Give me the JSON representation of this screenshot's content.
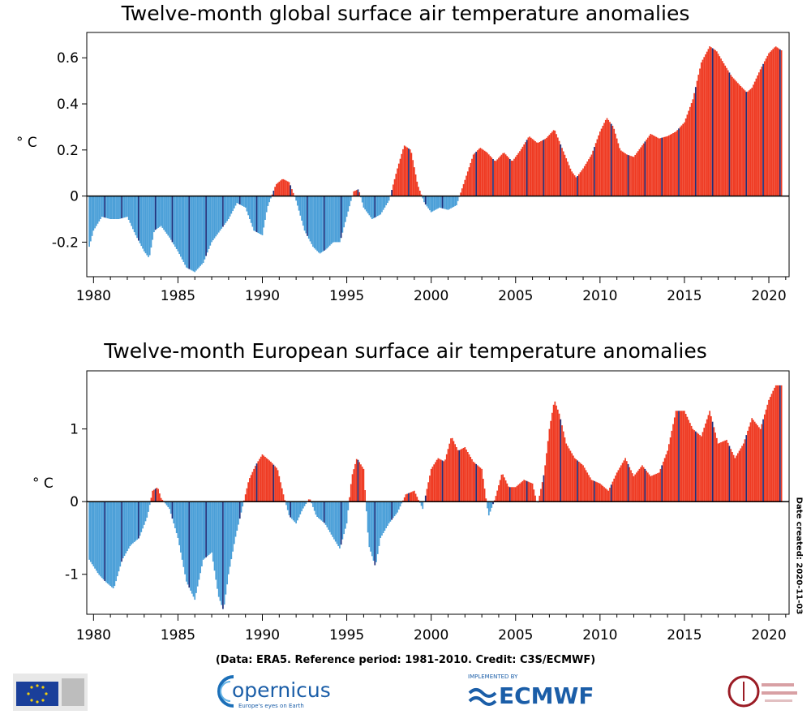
{
  "colors": {
    "positive": "#ef3a22",
    "negative": "#4a9fd8",
    "bar_edge": "#1f2f7a",
    "axis": "#000000"
  },
  "footer": {
    "credit": "(Data: ERA5.  Reference period: 1981-2010.  Credit: C3S/ECMWF)",
    "date_created": "Date created: 2020-11-03",
    "logos": {
      "copernicus": "opernicus",
      "copernicus_sub": "Europe's eyes on Earth",
      "ecmwf": "ECMWF",
      "ecmwf_top": "IMPLEMENTED BY"
    }
  },
  "chart_data": [
    {
      "type": "bar",
      "title": "Twelve-month global surface air temperature anomalies",
      "ylabel": "° C",
      "xlabel": "",
      "xlim": [
        1979.6,
        2021.2
      ],
      "ylim": [
        -0.35,
        0.71
      ],
      "yticks": [
        -0.2,
        0,
        0.2,
        0.4,
        0.6
      ],
      "ytick_labels": [
        "-0.2",
        "0",
        "0.2",
        "0.4",
        "0.6"
      ],
      "xticks": [
        1980,
        1985,
        1990,
        1995,
        2000,
        2005,
        2010,
        2015,
        2020
      ],
      "xtick_labels": [
        "1980",
        "1985",
        "1990",
        "1995",
        "2000",
        "2005",
        "2010",
        "2015",
        "2020"
      ],
      "resolution": "monthly",
      "anchors": [
        [
          1979.75,
          -0.22
        ],
        [
          1980.0,
          -0.15
        ],
        [
          1980.5,
          -0.09
        ],
        [
          1981.0,
          -0.1
        ],
        [
          1981.5,
          -0.1
        ],
        [
          1982.0,
          -0.09
        ],
        [
          1982.5,
          -0.17
        ],
        [
          1983.0,
          -0.24
        ],
        [
          1983.3,
          -0.27
        ],
        [
          1983.6,
          -0.15
        ],
        [
          1984.0,
          -0.13
        ],
        [
          1984.5,
          -0.18
        ],
        [
          1985.0,
          -0.24
        ],
        [
          1985.5,
          -0.31
        ],
        [
          1986.0,
          -0.33
        ],
        [
          1986.5,
          -0.29
        ],
        [
          1987.0,
          -0.2
        ],
        [
          1987.5,
          -0.15
        ],
        [
          1988.0,
          -0.1
        ],
        [
          1988.5,
          -0.03
        ],
        [
          1989.0,
          -0.05
        ],
        [
          1989.5,
          -0.15
        ],
        [
          1990.0,
          -0.17
        ],
        [
          1990.3,
          -0.05
        ],
        [
          1990.8,
          0.05
        ],
        [
          1991.2,
          0.075
        ],
        [
          1991.6,
          0.06
        ],
        [
          1992.0,
          -0.02
        ],
        [
          1992.5,
          -0.15
        ],
        [
          1993.0,
          -0.22
        ],
        [
          1993.4,
          -0.25
        ],
        [
          1993.8,
          -0.23
        ],
        [
          1994.2,
          -0.2
        ],
        [
          1994.6,
          -0.2
        ],
        [
          1995.0,
          -0.09
        ],
        [
          1995.4,
          0.02
        ],
        [
          1995.7,
          0.03
        ],
        [
          1996.0,
          -0.05
        ],
        [
          1996.5,
          -0.1
        ],
        [
          1997.0,
          -0.08
        ],
        [
          1997.5,
          -0.02
        ],
        [
          1998.0,
          0.12
        ],
        [
          1998.4,
          0.22
        ],
        [
          1998.8,
          0.2
        ],
        [
          1999.2,
          0.05
        ],
        [
          1999.6,
          -0.03
        ],
        [
          2000.0,
          -0.07
        ],
        [
          2000.5,
          -0.05
        ],
        [
          2001.0,
          -0.06
        ],
        [
          2001.5,
          -0.04
        ],
        [
          2002.0,
          0.07
        ],
        [
          2002.5,
          0.18
        ],
        [
          2002.9,
          0.21
        ],
        [
          2003.3,
          0.19
        ],
        [
          2003.8,
          0.15
        ],
        [
          2004.3,
          0.19
        ],
        [
          2004.8,
          0.15
        ],
        [
          2005.3,
          0.2
        ],
        [
          2005.8,
          0.26
        ],
        [
          2006.3,
          0.23
        ],
        [
          2006.8,
          0.25
        ],
        [
          2007.3,
          0.29
        ],
        [
          2007.8,
          0.2
        ],
        [
          2008.3,
          0.11
        ],
        [
          2008.6,
          0.08
        ],
        [
          2009.0,
          0.12
        ],
        [
          2009.5,
          0.18
        ],
        [
          2010.0,
          0.28
        ],
        [
          2010.4,
          0.34
        ],
        [
          2010.8,
          0.3
        ],
        [
          2011.2,
          0.2
        ],
        [
          2011.6,
          0.18
        ],
        [
          2012.0,
          0.17
        ],
        [
          2012.5,
          0.22
        ],
        [
          2013.0,
          0.27
        ],
        [
          2013.5,
          0.25
        ],
        [
          2014.0,
          0.26
        ],
        [
          2014.5,
          0.28
        ],
        [
          2015.0,
          0.32
        ],
        [
          2015.5,
          0.42
        ],
        [
          2016.0,
          0.58
        ],
        [
          2016.5,
          0.65
        ],
        [
          2016.9,
          0.63
        ],
        [
          2017.3,
          0.58
        ],
        [
          2017.8,
          0.52
        ],
        [
          2018.3,
          0.48
        ],
        [
          2018.7,
          0.45
        ],
        [
          2019.0,
          0.47
        ],
        [
          2019.5,
          0.55
        ],
        [
          2020.0,
          0.62
        ],
        [
          2020.4,
          0.65
        ],
        [
          2020.8,
          0.63
        ]
      ],
      "date_created": "Date created: 2020-11-03"
    },
    {
      "type": "bar",
      "title": "Twelve-month European surface air temperature anomalies",
      "ylabel": "° C",
      "xlabel": "",
      "xlim": [
        1979.6,
        2021.2
      ],
      "ylim": [
        -1.55,
        1.8
      ],
      "yticks": [
        -1,
        0,
        1
      ],
      "ytick_labels": [
        "-1",
        "0",
        "1"
      ],
      "xticks": [
        1980,
        1985,
        1990,
        1995,
        2000,
        2005,
        2010,
        2015,
        2020
      ],
      "xtick_labels": [
        "1980",
        "1985",
        "1990",
        "1995",
        "2000",
        "2005",
        "2010",
        "2015",
        "2020"
      ],
      "resolution": "monthly",
      "anchors": [
        [
          1979.75,
          -0.8
        ],
        [
          1980.3,
          -1.0
        ],
        [
          1980.7,
          -1.1
        ],
        [
          1981.2,
          -1.2
        ],
        [
          1981.7,
          -0.8
        ],
        [
          1982.2,
          -0.6
        ],
        [
          1982.7,
          -0.5
        ],
        [
          1983.2,
          -0.2
        ],
        [
          1983.5,
          0.15
        ],
        [
          1983.8,
          0.2
        ],
        [
          1984.0,
          0.05
        ],
        [
          1984.5,
          -0.1
        ],
        [
          1985.0,
          -0.5
        ],
        [
          1985.5,
          -1.1
        ],
        [
          1986.0,
          -1.35
        ],
        [
          1986.5,
          -0.8
        ],
        [
          1987.0,
          -0.7
        ],
        [
          1987.4,
          -1.3
        ],
        [
          1987.7,
          -1.5
        ],
        [
          1988.0,
          -1.0
        ],
        [
          1988.4,
          -0.5
        ],
        [
          1988.8,
          -0.1
        ],
        [
          1989.2,
          0.3
        ],
        [
          1989.6,
          0.5
        ],
        [
          1990.0,
          0.65
        ],
        [
          1990.5,
          0.55
        ],
        [
          1990.9,
          0.45
        ],
        [
          1991.3,
          0.05
        ],
        [
          1991.6,
          -0.2
        ],
        [
          1992.0,
          -0.3
        ],
        [
          1992.4,
          -0.1
        ],
        [
          1992.8,
          0.05
        ],
        [
          1993.2,
          -0.2
        ],
        [
          1993.7,
          -0.3
        ],
        [
          1994.2,
          -0.5
        ],
        [
          1994.6,
          -0.65
        ],
        [
          1995.0,
          -0.3
        ],
        [
          1995.3,
          0.35
        ],
        [
          1995.6,
          0.6
        ],
        [
          1996.0,
          0.45
        ],
        [
          1996.3,
          -0.6
        ],
        [
          1996.7,
          -0.9
        ],
        [
          1997.0,
          -0.5
        ],
        [
          1997.5,
          -0.3
        ],
        [
          1998.0,
          -0.15
        ],
        [
          1998.5,
          0.1
        ],
        [
          1999.0,
          0.15
        ],
        [
          1999.5,
          -0.1
        ],
        [
          2000.0,
          0.45
        ],
        [
          2000.4,
          0.6
        ],
        [
          2000.8,
          0.55
        ],
        [
          2001.2,
          0.9
        ],
        [
          2001.6,
          0.7
        ],
        [
          2002.0,
          0.75
        ],
        [
          2002.5,
          0.55
        ],
        [
          2003.0,
          0.45
        ],
        [
          2003.4,
          -0.2
        ],
        [
          2003.8,
          0.05
        ],
        [
          2004.2,
          0.4
        ],
        [
          2004.6,
          0.2
        ],
        [
          2005.0,
          0.2
        ],
        [
          2005.5,
          0.3
        ],
        [
          2006.0,
          0.25
        ],
        [
          2006.3,
          -0.05
        ],
        [
          2006.7,
          0.4
        ],
        [
          2007.0,
          1.0
        ],
        [
          2007.3,
          1.4
        ],
        [
          2007.6,
          1.2
        ],
        [
          2008.0,
          0.8
        ],
        [
          2008.5,
          0.6
        ],
        [
          2009.0,
          0.5
        ],
        [
          2009.5,
          0.3
        ],
        [
          2010.0,
          0.25
        ],
        [
          2010.5,
          0.15
        ],
        [
          2011.0,
          0.4
        ],
        [
          2011.5,
          0.6
        ],
        [
          2012.0,
          0.35
        ],
        [
          2012.5,
          0.5
        ],
        [
          2013.0,
          0.35
        ],
        [
          2013.5,
          0.4
        ],
        [
          2014.0,
          0.7
        ],
        [
          2014.5,
          1.25
        ],
        [
          2015.0,
          1.25
        ],
        [
          2015.5,
          1.0
        ],
        [
          2016.0,
          0.9
        ],
        [
          2016.5,
          1.25
        ],
        [
          2017.0,
          0.8
        ],
        [
          2017.5,
          0.85
        ],
        [
          2018.0,
          0.6
        ],
        [
          2018.5,
          0.8
        ],
        [
          2019.0,
          1.15
        ],
        [
          2019.5,
          1.0
        ],
        [
          2020.0,
          1.4
        ],
        [
          2020.4,
          1.6
        ],
        [
          2020.8,
          1.6
        ]
      ]
    }
  ]
}
